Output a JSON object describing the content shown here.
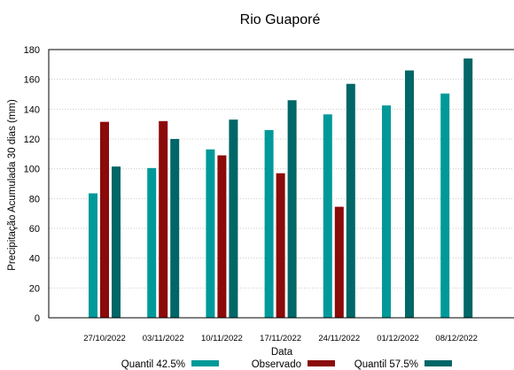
{
  "chart_data": {
    "type": "bar",
    "title": "Rio Guaporé",
    "xlabel": "Data",
    "ylabel": "Precipitação Acumulada 30 dias (mm)",
    "ylim": [
      0,
      180
    ],
    "yticks": [
      0,
      20,
      40,
      60,
      80,
      100,
      120,
      140,
      160,
      180
    ],
    "grid": true,
    "legend_position": "bottom",
    "categories": [
      "27/10/2022",
      "03/11/2022",
      "10/11/2022",
      "17/11/2022",
      "24/11/2022",
      "01/12/2022",
      "08/12/2022"
    ],
    "series": [
      {
        "name": "Quantil 42.5%",
        "color": "#009999",
        "values": [
          83.5,
          100.5,
          113,
          126,
          136.5,
          142.5,
          150.5
        ]
      },
      {
        "name": "Observado",
        "color": "#8b0a0a",
        "values": [
          131.5,
          132,
          109,
          97,
          74.5,
          null,
          null
        ]
      },
      {
        "name": "Quantil 57.5%",
        "color": "#006666",
        "values": [
          101.5,
          120,
          133,
          146,
          157,
          166,
          174
        ]
      }
    ]
  }
}
